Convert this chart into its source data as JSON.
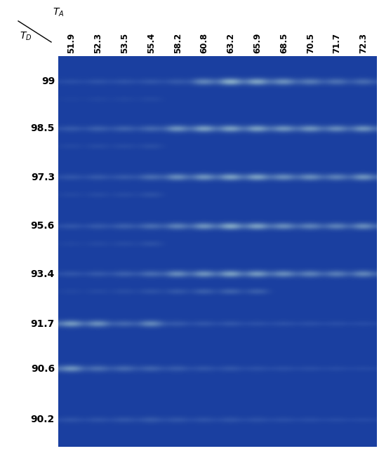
{
  "ta_labels": [
    "51.9",
    "52.3",
    "53.5",
    "55.4",
    "58.2",
    "60.8",
    "63.2",
    "65.9",
    "68.5",
    "70.5",
    "71.7",
    "72.3"
  ],
  "td_labels": [
    "99",
    "98.5",
    "97.3",
    "95.6",
    "93.4",
    "91.7",
    "90.6",
    "90.2"
  ],
  "fig_width": 5.4,
  "fig_height": 6.43,
  "gel_color": [
    26,
    63,
    160
  ],
  "n_cols": 12,
  "n_rows": 8,
  "band_data": {
    "99": {
      "upper": [
        0.3,
        0.35,
        0.35,
        0.38,
        0.42,
        0.75,
        0.95,
        0.9,
        0.8,
        0.68,
        0.62,
        0.58
      ],
      "lower": [
        0.2,
        0.25,
        0.25,
        0.28,
        0.0,
        0.0,
        0.0,
        0.0,
        0.0,
        0.0,
        0.0,
        0.0
      ]
    },
    "98.5": {
      "upper": [
        0.42,
        0.48,
        0.5,
        0.55,
        0.82,
        0.88,
        0.88,
        0.88,
        0.82,
        0.82,
        0.78,
        0.82
      ],
      "lower": [
        0.28,
        0.32,
        0.32,
        0.35,
        0.0,
        0.0,
        0.0,
        0.0,
        0.0,
        0.0,
        0.0,
        0.0
      ]
    },
    "97.3": {
      "upper": [
        0.38,
        0.42,
        0.42,
        0.58,
        0.78,
        0.82,
        0.88,
        0.88,
        0.78,
        0.78,
        0.72,
        0.82
      ],
      "lower": [
        0.28,
        0.32,
        0.32,
        0.38,
        0.0,
        0.0,
        0.0,
        0.0,
        0.0,
        0.0,
        0.0,
        0.0
      ]
    },
    "95.6": {
      "upper": [
        0.38,
        0.42,
        0.48,
        0.58,
        0.72,
        0.82,
        0.92,
        0.88,
        0.78,
        0.72,
        0.72,
        0.78
      ],
      "lower": [
        0.25,
        0.3,
        0.32,
        0.38,
        0.0,
        0.0,
        0.0,
        0.0,
        0.0,
        0.0,
        0.0,
        0.0
      ]
    },
    "93.4": {
      "upper": [
        0.38,
        0.42,
        0.48,
        0.58,
        0.78,
        0.82,
        0.88,
        0.85,
        0.78,
        0.72,
        0.7,
        0.75
      ],
      "lower": [
        0.26,
        0.3,
        0.34,
        0.4,
        0.46,
        0.52,
        0.55,
        0.52,
        0.0,
        0.0,
        0.0,
        0.0
      ]
    },
    "91.7": {
      "upper": [
        0.85,
        0.8,
        0.55,
        0.75,
        0.42,
        0.38,
        0.38,
        0.32,
        0.32,
        0.3,
        0.28,
        0.25
      ],
      "lower": [
        0.0,
        0.0,
        0.0,
        0.0,
        0.0,
        0.0,
        0.0,
        0.0,
        0.0,
        0.0,
        0.0,
        0.0
      ]
    },
    "90.6": {
      "upper": [
        0.82,
        0.6,
        0.55,
        0.5,
        0.44,
        0.38,
        0.38,
        0.32,
        0.3,
        0.28,
        0.25,
        0.22
      ],
      "lower": [
        0.0,
        0.0,
        0.0,
        0.0,
        0.0,
        0.0,
        0.0,
        0.0,
        0.0,
        0.0,
        0.0,
        0.0
      ]
    },
    "90.2": {
      "upper": [
        0.35,
        0.35,
        0.38,
        0.42,
        0.38,
        0.35,
        0.36,
        0.33,
        0.3,
        0.28,
        0.26,
        0.23
      ],
      "lower": [
        0.0,
        0.0,
        0.0,
        0.0,
        0.0,
        0.0,
        0.0,
        0.0,
        0.0,
        0.0,
        0.0,
        0.0
      ]
    }
  }
}
